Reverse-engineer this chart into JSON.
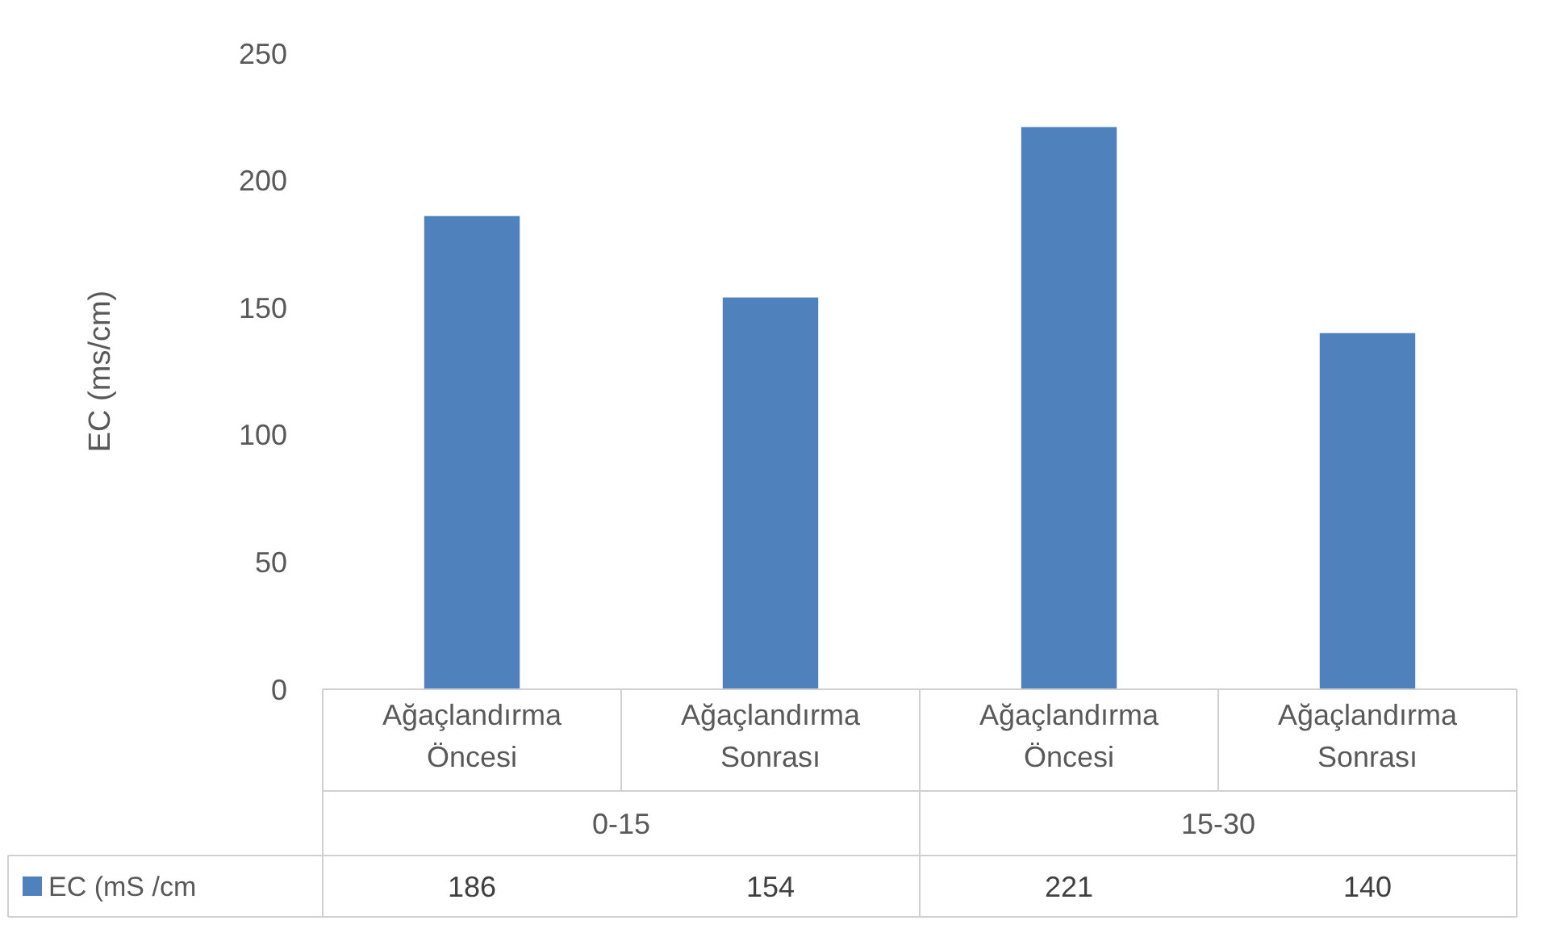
{
  "chart_data": {
    "type": "bar",
    "ylabel": "EC (ms/cm)",
    "categories": [
      "Ağaçlandırma Öncesi",
      "Ağaçlandırma Sonrası",
      "Ağaçlandırma Öncesi",
      "Ağaçlandırma Sonrası"
    ],
    "series": [
      {
        "name": "EC (mS /cm",
        "color": "#4f81bd",
        "values": [
          186,
          154,
          221,
          140
        ]
      }
    ],
    "annotations": [
      "0-15",
      "15-30"
    ],
    "ylim": [
      0,
      250
    ],
    "yticks": [
      0,
      50,
      100,
      150,
      200,
      250
    ],
    "data_labels": true,
    "legend": "bottom"
  }
}
